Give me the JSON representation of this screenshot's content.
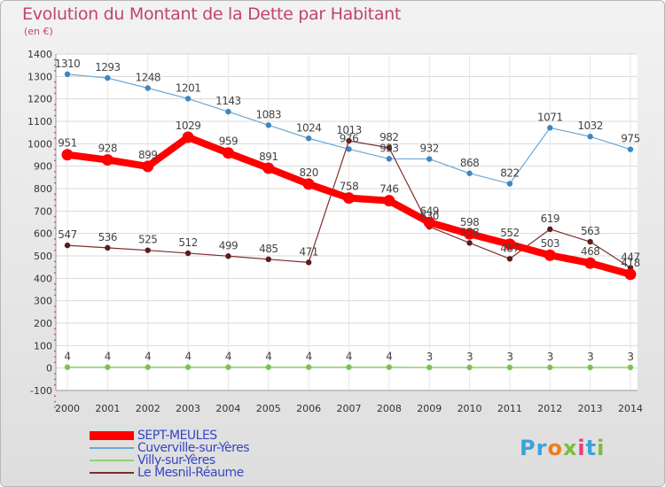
{
  "title": "Evolution du Montant de la Dette par Habitant",
  "subtitle": "(en €)",
  "logo": {
    "text": "Proxiti",
    "colors": [
      "#3ba3d9",
      "#3ba3d9",
      "#f07d1d",
      "#7cbd3b",
      "#ee3a7a",
      "#3ba3d9",
      "#7cbd3b"
    ]
  },
  "chart_data": {
    "type": "line",
    "x": [
      "2000",
      "2001",
      "2002",
      "2003",
      "2004",
      "2005",
      "2006",
      "2007",
      "2008",
      "2009",
      "2010",
      "2011",
      "2012",
      "2013",
      "2014"
    ],
    "ylim": [
      -100,
      1400
    ],
    "yticks": [
      "-100",
      "0",
      "100",
      "200",
      "300",
      "400",
      "500",
      "600",
      "700",
      "800",
      "900",
      "1000",
      "1100",
      "1200",
      "1300",
      "1400"
    ],
    "grid": true,
    "legend_position": "bottom-left",
    "series": [
      {
        "name": "SEPT-MEULES",
        "color": "#ff0000",
        "values": [
          951,
          928,
          899,
          1029,
          959,
          891,
          820,
          758,
          746,
          649,
          598,
          552,
          503,
          468,
          418
        ],
        "labels": [
          "951",
          "928",
          "899",
          "1029",
          "959",
          "891",
          "820",
          "758",
          "746",
          "649",
          "598",
          "552",
          "503",
          "468",
          "418"
        ]
      },
      {
        "name": "Cuverville-sur-Yères",
        "color": "#6aa8d6",
        "values": [
          1310,
          1293,
          1248,
          1201,
          1143,
          1083,
          1024,
          976,
          933,
          932,
          868,
          822,
          1071,
          1032,
          975
        ],
        "labels": [
          "1310",
          "1293",
          "1248",
          "1201",
          "1143",
          "1083",
          "1024",
          "976",
          "933",
          "932",
          "868",
          "822",
          "1071",
          "1032",
          "975"
        ]
      },
      {
        "name": "Villy-sur-Yères",
        "color": "#8fd36b",
        "values": [
          4,
          4,
          4,
          4,
          4,
          4,
          4,
          4,
          4,
          3,
          3,
          3,
          3,
          3,
          3
        ],
        "labels": [
          "4",
          "4",
          "4",
          "4",
          "4",
          "4",
          "4",
          "4",
          "4",
          "3",
          "3",
          "3",
          "3",
          "3",
          "3"
        ]
      },
      {
        "name": "Le Mesnil-Réaume",
        "color": "#7a2e2e",
        "values": [
          547,
          536,
          525,
          512,
          499,
          485,
          471,
          1013,
          982,
          630,
          558,
          487,
          619,
          563,
          447
        ],
        "labels": [
          "547",
          "536",
          "525",
          "512",
          "499",
          "485",
          "471",
          "1013",
          "982",
          "630",
          "558",
          "487",
          "619",
          "563",
          "447"
        ]
      }
    ]
  }
}
